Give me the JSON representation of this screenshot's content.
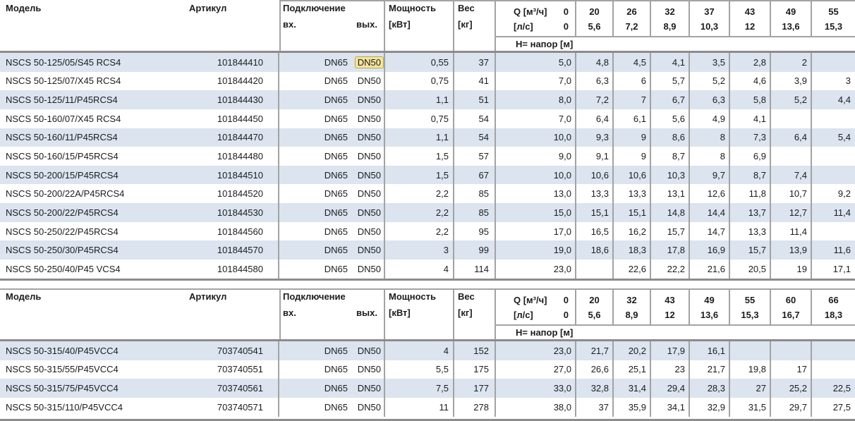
{
  "colors": {
    "row_alt": "#dbe4ef",
    "grid_line": "#a3a3a3",
    "heavy_rule": "#8c8c8c",
    "highlight_bg": "#f5e49c",
    "highlight_border": "#bca64f",
    "text": "#1c1c1c"
  },
  "tables": [
    {
      "labels": {
        "model": "Модель",
        "artikul": "Артикул",
        "connection": "Подключение",
        "conn_in": "вх.",
        "conn_out": "вых.",
        "power_line1": "Мощность",
        "power_line2": "[кВт]",
        "weight_line1": "Вес",
        "weight_line2": "[кг]",
        "q_line1": "Q [м³/ч]",
        "q_line1_zero": "0",
        "q_line2": "[л/с]",
        "q_line2_zero": "0",
        "head_row": "Н= напор [м]"
      },
      "q_flows": [
        "20",
        "26",
        "32",
        "37",
        "43",
        "49",
        "55"
      ],
      "q_ls": [
        "5,6",
        "7,2",
        "8,9",
        "10,3",
        "12",
        "13,6",
        "15,3"
      ],
      "rows": [
        {
          "model": "NSCS 50-125/05/S45 RCS4",
          "artikul": "101844410",
          "dn_in": "DN65",
          "dn_out": "DN50",
          "highlight_out": true,
          "power": "0,55",
          "weight": "37",
          "heads": [
            "5,0",
            "4,8",
            "4,5",
            "4,1",
            "3,5",
            "2,8",
            "2",
            ""
          ]
        },
        {
          "model": "NSCS 50-125/07/X45 RCS4",
          "artikul": "101844420",
          "dn_in": "DN65",
          "dn_out": "DN50",
          "highlight_out": false,
          "power": "0,75",
          "weight": "41",
          "heads": [
            "7,0",
            "6,3",
            "6",
            "5,7",
            "5,2",
            "4,6",
            "3,9",
            "3"
          ]
        },
        {
          "model": "NSCS 50-125/11/P45RCS4",
          "artikul": "101844430",
          "dn_in": "DN65",
          "dn_out": "DN50",
          "highlight_out": false,
          "power": "1,1",
          "weight": "51",
          "heads": [
            "8,0",
            "7,2",
            "7",
            "6,7",
            "6,3",
            "5,8",
            "5,2",
            "4,4"
          ]
        },
        {
          "model": "NSCS 50-160/07/X45 RCS4",
          "artikul": "101844450",
          "dn_in": "DN65",
          "dn_out": "DN50",
          "highlight_out": false,
          "power": "0,75",
          "weight": "54",
          "heads": [
            "7,0",
            "6,4",
            "6,1",
            "5,6",
            "4,9",
            "4,1",
            "",
            ""
          ]
        },
        {
          "model": "NSCS 50-160/11/P45RCS4",
          "artikul": "101844470",
          "dn_in": "DN65",
          "dn_out": "DN50",
          "highlight_out": false,
          "power": "1,1",
          "weight": "54",
          "heads": [
            "10,0",
            "9,3",
            "9",
            "8,6",
            "8",
            "7,3",
            "6,4",
            "5,4"
          ]
        },
        {
          "model": "NSCS 50-160/15/P45RCS4",
          "artikul": "101844480",
          "dn_in": "DN65",
          "dn_out": "DN50",
          "highlight_out": false,
          "power": "1,5",
          "weight": "57",
          "heads": [
            "9,0",
            "9,1",
            "9",
            "8,7",
            "8",
            "6,9",
            "",
            ""
          ]
        },
        {
          "model": "NSCS 50-200/15/P45RCS4",
          "artikul": "101844510",
          "dn_in": "DN65",
          "dn_out": "DN50",
          "highlight_out": false,
          "power": "1,5",
          "weight": "67",
          "heads": [
            "10,0",
            "10,6",
            "10,6",
            "10,3",
            "9,7",
            "8,7",
            "7,4",
            ""
          ]
        },
        {
          "model": "NSCS 50-200/22A/P45RCS4",
          "artikul": "101844520",
          "dn_in": "DN65",
          "dn_out": "DN50",
          "highlight_out": false,
          "power": "2,2",
          "weight": "85",
          "heads": [
            "13,0",
            "13,3",
            "13,3",
            "13,1",
            "12,6",
            "11,8",
            "10,7",
            "9,2"
          ]
        },
        {
          "model": "NSCS 50-200/22/P45RCS4",
          "artikul": "101844530",
          "dn_in": "DN65",
          "dn_out": "DN50",
          "highlight_out": false,
          "power": "2,2",
          "weight": "85",
          "heads": [
            "15,0",
            "15,1",
            "15,1",
            "14,8",
            "14,4",
            "13,7",
            "12,7",
            "11,4"
          ]
        },
        {
          "model": "NSCS 50-250/22/P45RCS4",
          "artikul": "101844560",
          "dn_in": "DN65",
          "dn_out": "DN50",
          "highlight_out": false,
          "power": "2,2",
          "weight": "95",
          "heads": [
            "17,0",
            "16,5",
            "16,2",
            "15,7",
            "14,7",
            "13,3",
            "11,4",
            ""
          ]
        },
        {
          "model": "NSCS 50-250/30/P45RCS4",
          "artikul": "101844570",
          "dn_in": "DN65",
          "dn_out": "DN50",
          "highlight_out": false,
          "power": "3",
          "weight": "99",
          "heads": [
            "19,0",
            "18,6",
            "18,3",
            "17,8",
            "16,9",
            "15,7",
            "13,9",
            "11,6"
          ]
        },
        {
          "model": "NSCS 50-250/40/P45 VCS4",
          "artikul": "101844580",
          "dn_in": "DN65",
          "dn_out": "DN50",
          "highlight_out": false,
          "power": "4",
          "weight": "114",
          "heads": [
            "23,0",
            "",
            "22,6",
            "22,2",
            "21,6",
            "20,5",
            "19",
            "17,1"
          ]
        }
      ]
    },
    {
      "labels": {
        "model": "Модель",
        "artikul": "Артикул",
        "connection": "Подключение",
        "conn_in": "вх.",
        "conn_out": "вых.",
        "power_line1": "Мощность",
        "power_line2": "[кВт]",
        "weight_line1": "Вес",
        "weight_line2": "[кг]",
        "q_line1": "Q [м³/ч]",
        "q_line1_zero": "0",
        "q_line2": "[л/с]",
        "q_line2_zero": "0",
        "head_row": "Н= напор [м]"
      },
      "q_flows": [
        "20",
        "32",
        "43",
        "49",
        "55",
        "60",
        "66"
      ],
      "q_ls": [
        "5,6",
        "8,9",
        "12",
        "13,6",
        "15,3",
        "16,7",
        "18,3"
      ],
      "rows": [
        {
          "model": "NSCS 50-315/40/P45VCC4",
          "artikul": "703740541",
          "dn_in": "DN65",
          "dn_out": "DN50",
          "highlight_out": false,
          "power": "4",
          "weight": "152",
          "heads": [
            "23,0",
            "21,7",
            "20,2",
            "17,9",
            "16,1",
            "",
            "",
            ""
          ]
        },
        {
          "model": "NSCS 50-315/55/P45VCC4",
          "artikul": "703740551",
          "dn_in": "DN65",
          "dn_out": "DN50",
          "highlight_out": false,
          "power": "5,5",
          "weight": "175",
          "heads": [
            "27,0",
            "26,6",
            "25,1",
            "23",
            "21,7",
            "19,8",
            "17",
            ""
          ]
        },
        {
          "model": "NSCS 50-315/75/P45VCC4",
          "artikul": "703740561",
          "dn_in": "DN65",
          "dn_out": "DN50",
          "highlight_out": false,
          "power": "7,5",
          "weight": "177",
          "heads": [
            "33,0",
            "32,8",
            "31,4",
            "29,4",
            "28,3",
            "27",
            "25,2",
            "22,5"
          ]
        },
        {
          "model": "NSCS 50-315/110/P45VCC4",
          "artikul": "703740571",
          "dn_in": "DN65",
          "dn_out": "DN50",
          "highlight_out": false,
          "power": "11",
          "weight": "278",
          "heads": [
            "38,0",
            "37",
            "35,9",
            "34,1",
            "32,9",
            "31,5",
            "29,7",
            "27,5"
          ]
        }
      ]
    }
  ]
}
